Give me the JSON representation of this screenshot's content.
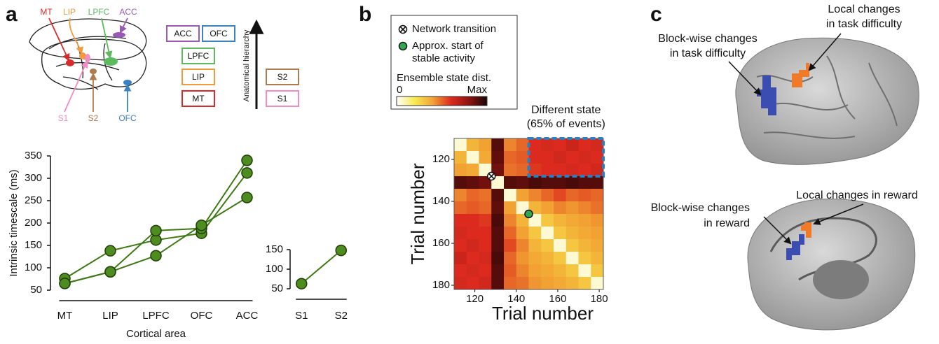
{
  "figure": {
    "panel_labels": [
      "a",
      "b",
      "c"
    ]
  },
  "diagram_a": {
    "brain_labels": [
      "MT",
      "LIP",
      "LPFC",
      "ACC",
      "S1",
      "S2",
      "OFC"
    ],
    "hierarchy_boxes": [
      "ACC",
      "OFC",
      "LPFC",
      "LIP",
      "MT",
      "S2",
      "S1"
    ],
    "hierarchy_axis": "Anatomical hierarchy"
  },
  "chart_data": [
    {
      "type": "line",
      "xlabel": "Cortical area",
      "ylabel": "Intrinsic timescale (ms)",
      "categories": [
        "MT",
        "LIP",
        "LPFC",
        "OFC",
        "ACC"
      ],
      "series": [
        {
          "color": "#3d7a12",
          "values": [
            76,
            138,
            162,
            177,
            312
          ]
        },
        {
          "color": "#3d7a12",
          "values": [
            65,
            91,
            183,
            188,
            340
          ]
        },
        {
          "color": "#3d7a12",
          "values": [
            65,
            91,
            127,
            195,
            257
          ]
        }
      ],
      "marker_color": "#4e8c1f",
      "ylim": [
        45,
        355
      ],
      "yticks": [
        50,
        100,
        150,
        200,
        250,
        300,
        350
      ]
    },
    {
      "type": "line",
      "categories": [
        "S1",
        "S2"
      ],
      "series": [
        {
          "color": "#3d7a12",
          "values": [
            63,
            148
          ]
        }
      ],
      "marker_color": "#4e8c1f",
      "ylim": [
        45,
        155
      ],
      "yticks": [
        50,
        100,
        150
      ]
    },
    {
      "type": "heatmap",
      "xlabel": "Trial number",
      "ylabel": "Trial number",
      "xbins": [
        110,
        116,
        122,
        128,
        134,
        140,
        146,
        152,
        158,
        164,
        170,
        176,
        182
      ],
      "ybins": [
        110,
        116,
        122,
        128,
        134,
        140,
        146,
        152,
        158,
        164,
        170,
        176,
        182
      ],
      "z": [
        [
          0.05,
          0.35,
          0.4,
          0.9,
          0.45,
          0.5,
          0.6,
          0.62,
          0.6,
          0.65,
          0.6,
          0.62
        ],
        [
          0.35,
          0.05,
          0.38,
          0.88,
          0.5,
          0.52,
          0.6,
          0.6,
          0.63,
          0.6,
          0.62,
          0.6
        ],
        [
          0.4,
          0.38,
          0.05,
          0.85,
          0.48,
          0.5,
          0.58,
          0.6,
          0.6,
          0.62,
          0.6,
          0.63
        ],
        [
          0.9,
          0.88,
          0.85,
          0.05,
          0.9,
          0.88,
          0.92,
          0.9,
          0.9,
          0.92,
          0.9,
          0.9
        ],
        [
          0.45,
          0.5,
          0.48,
          0.9,
          0.05,
          0.4,
          0.45,
          0.5,
          0.55,
          0.5,
          0.52,
          0.5
        ],
        [
          0.5,
          0.52,
          0.5,
          0.88,
          0.4,
          0.05,
          0.35,
          0.4,
          0.45,
          0.42,
          0.45,
          0.48
        ],
        [
          0.6,
          0.6,
          0.58,
          0.92,
          0.45,
          0.35,
          0.05,
          0.3,
          0.35,
          0.38,
          0.4,
          0.42
        ],
        [
          0.62,
          0.6,
          0.6,
          0.9,
          0.5,
          0.4,
          0.3,
          0.05,
          0.3,
          0.35,
          0.38,
          0.4
        ],
        [
          0.6,
          0.63,
          0.6,
          0.9,
          0.55,
          0.45,
          0.35,
          0.3,
          0.05,
          0.3,
          0.35,
          0.38
        ],
        [
          0.65,
          0.6,
          0.62,
          0.92,
          0.5,
          0.42,
          0.38,
          0.35,
          0.3,
          0.05,
          0.3,
          0.35
        ],
        [
          0.6,
          0.62,
          0.6,
          0.9,
          0.52,
          0.45,
          0.4,
          0.38,
          0.35,
          0.3,
          0.05,
          0.3
        ],
        [
          0.62,
          0.6,
          0.63,
          0.9,
          0.5,
          0.48,
          0.42,
          0.4,
          0.38,
          0.35,
          0.3,
          0.05
        ]
      ],
      "xlim": [
        110,
        182
      ],
      "ylim": [
        110,
        182
      ],
      "y_reversed": true,
      "xticks": [
        120,
        140,
        160,
        180
      ],
      "yticks": [
        120,
        140,
        160,
        180
      ],
      "zlim": [
        0,
        1
      ],
      "colormap": [
        "#ffffff",
        "#f7ea4f",
        "#f2a233",
        "#dc2b1e",
        "#8e1410",
        "#1a0505"
      ],
      "colorbar_title": "Ensemble state dist.",
      "colorbar_ticks": [
        0,
        {
          "value": 1,
          "label": "Max"
        }
      ],
      "markers": [
        {
          "name": [
            "Network transition"
          ],
          "x": 128,
          "y": 128,
          "color": "#ffffff"
        },
        {
          "name": [
            "Approx. start of",
            "stable activity"
          ],
          "x": 146,
          "y": 146,
          "color": "#2fa84f"
        }
      ],
      "highlight": {
        "x": [
          146,
          182
        ],
        "y": [
          110,
          128
        ],
        "color": "#2a7fc1",
        "label": [
          "Different state",
          "(65% of events)"
        ]
      }
    }
  ],
  "panel_c": {
    "top": {
      "local": [
        "Local changes",
        "in task difficulty"
      ],
      "blockwise": [
        "Block-wise changes",
        "in task difficulty"
      ]
    },
    "bottom": {
      "local": [
        "Local changes in reward"
      ],
      "blockwise": [
        "Block-wise changes",
        "in reward"
      ]
    }
  }
}
